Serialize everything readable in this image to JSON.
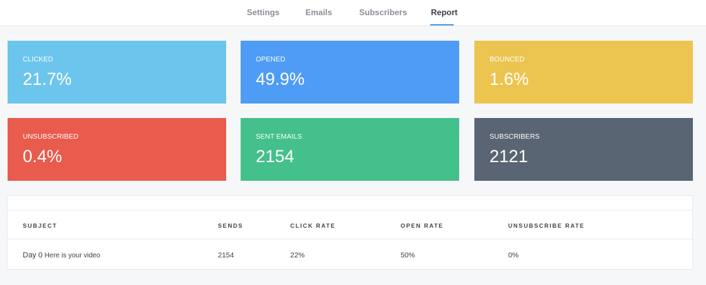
{
  "tabs": [
    {
      "label": "Settings"
    },
    {
      "label": "Emails"
    },
    {
      "label": "Subscribers"
    },
    {
      "label": "Report"
    }
  ],
  "active_tab": "Report",
  "accent_color": "#4e9cf5",
  "cards": [
    {
      "label": "CLICKED",
      "value": "21.7%",
      "color": "#6cc5ec"
    },
    {
      "label": "OPENED",
      "value": "49.9%",
      "color": "#4e9cf5"
    },
    {
      "label": "BOUNCED",
      "value": "1.6%",
      "color": "#ecc450"
    },
    {
      "label": "UNSUBSCRIBED",
      "value": "0.4%",
      "color": "#e95b4c"
    },
    {
      "label": "SENT EMAILS",
      "value": "2154",
      "color": "#43c08c"
    },
    {
      "label": "SUBSCRIBERS",
      "value": "2121",
      "color": "#5a6573"
    }
  ],
  "table": {
    "headers": [
      "SUBJECT",
      "SENDS",
      "CLICK RATE",
      "OPEN RATE",
      "UNSUBSCRIBE RATE"
    ],
    "rows": [
      {
        "subject_day": "Day 0",
        "subject_text": "Here is your video",
        "sends": "2154",
        "click_rate": "22%",
        "open_rate": "50%",
        "unsubscribe_rate": "0%"
      }
    ]
  }
}
